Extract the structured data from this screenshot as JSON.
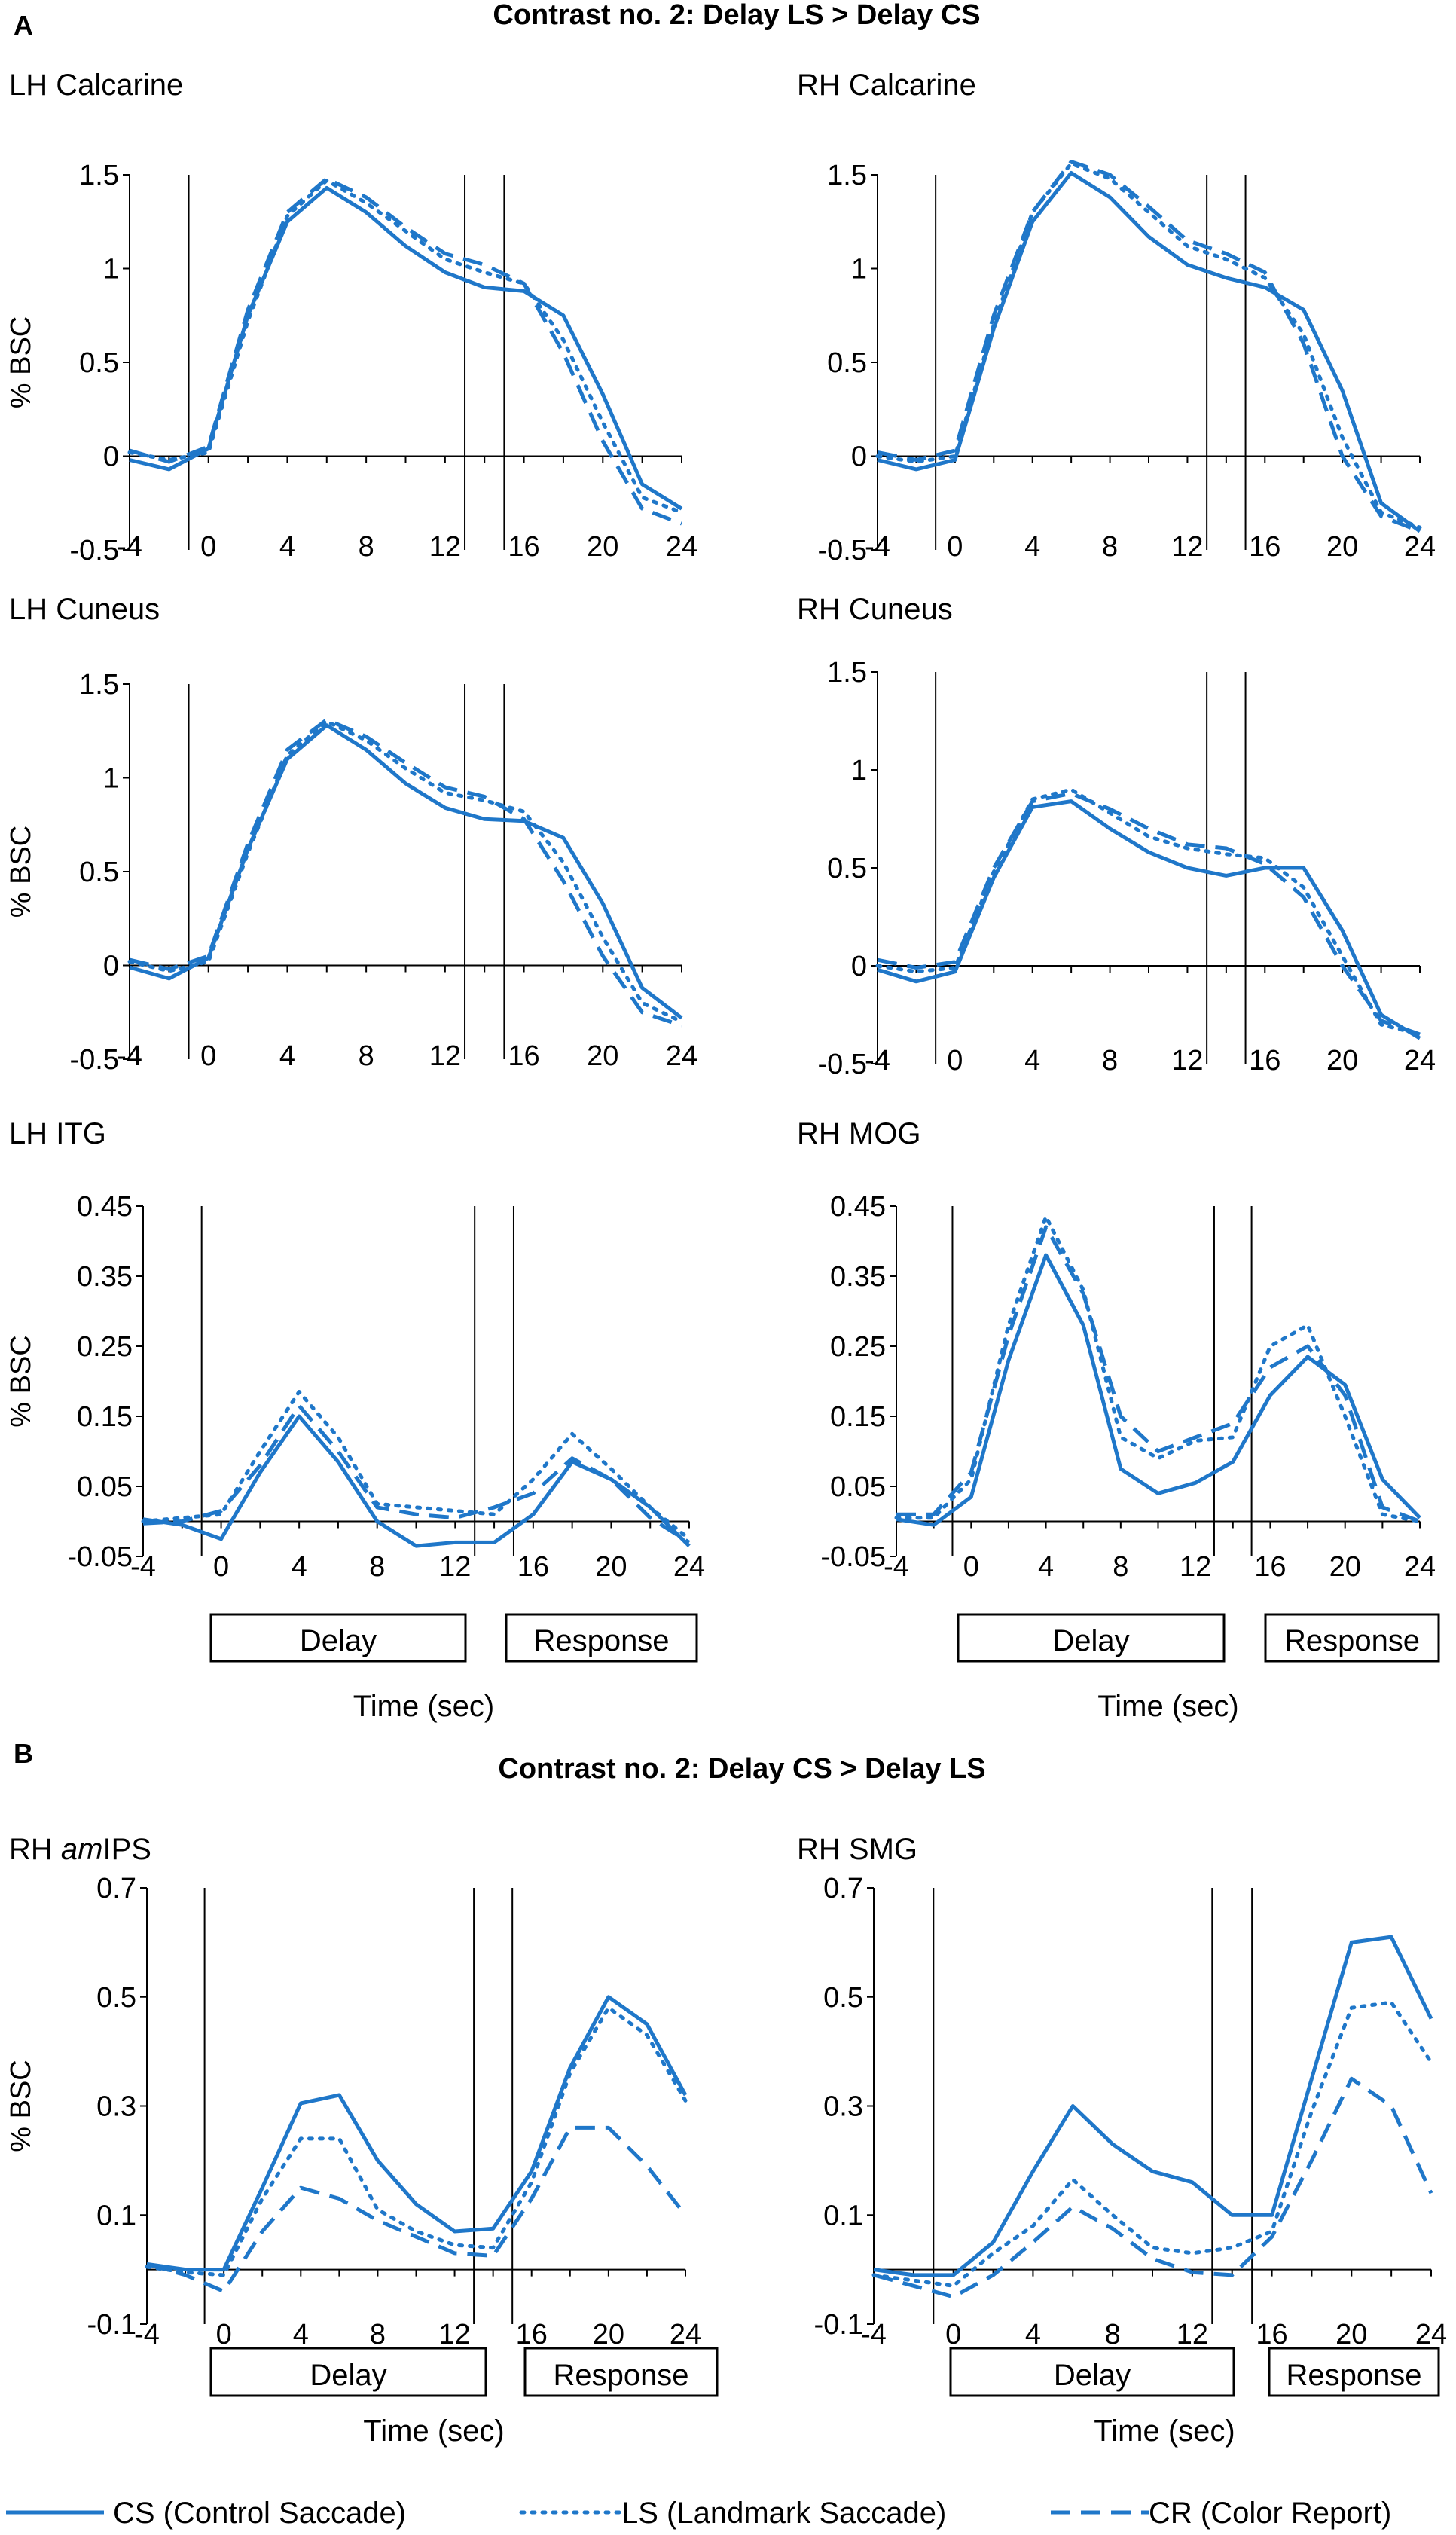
{
  "figure": {
    "panel_a_label": "A",
    "panel_a_title": "Contrast no. 2:  Delay LS > Delay CS",
    "panel_b_label": "B",
    "panel_b_title": "Contrast no. 2:  Delay CS > Delay LS",
    "delay_box_label": "Delay",
    "response_box_label": "Response",
    "x_axis_label": "Time (sec)",
    "line_color": "#1f77c9"
  },
  "legend": [
    {
      "key": "CS",
      "label": "CS (Control Saccade)",
      "style": "solid"
    },
    {
      "key": "LS",
      "label": "LS (Landmark Saccade)",
      "style": "dotted"
    },
    {
      "key": "CR",
      "label": "CR (Color Report)",
      "style": "dashed"
    }
  ],
  "chart_data": [
    {
      "type": "line",
      "title": "LH Calcarine",
      "title_parts": [
        {
          "t": "LH Calcarine",
          "i": false
        }
      ],
      "ylabel": "% BSC",
      "xlabel": "",
      "xlim": [
        -4,
        24
      ],
      "ylim": [
        -0.5,
        1.5
      ],
      "x_ticks": [
        -4,
        0,
        4,
        8,
        12,
        16,
        20,
        24
      ],
      "y_ticks": [
        -0.5,
        0,
        0.5,
        1,
        1.5
      ],
      "y_tick_labels": [
        "-0.5",
        "0",
        "0.5",
        "1",
        "1.5"
      ],
      "vlines": [
        -1,
        13,
        15
      ],
      "x": [
        -4,
        -2,
        0,
        2,
        4,
        6,
        8,
        10,
        12,
        14,
        16,
        18,
        20,
        22,
        24
      ],
      "series": [
        {
          "name": "CS",
          "values": [
            -0.02,
            -0.07,
            0.04,
            0.75,
            1.25,
            1.43,
            1.3,
            1.12,
            0.98,
            0.9,
            0.88,
            0.75,
            0.33,
            -0.15,
            -0.28
          ]
        },
        {
          "name": "LS",
          "values": [
            0.02,
            -0.02,
            0.02,
            0.72,
            1.28,
            1.47,
            1.35,
            1.2,
            1.05,
            0.98,
            0.92,
            0.62,
            0.18,
            -0.22,
            -0.3
          ]
        },
        {
          "name": "CR",
          "values": [
            0.03,
            -0.03,
            0.05,
            0.78,
            1.3,
            1.48,
            1.38,
            1.22,
            1.08,
            1.02,
            0.92,
            0.55,
            0.08,
            -0.28,
            -0.36
          ]
        }
      ]
    },
    {
      "type": "line",
      "title": "RH Calcarine",
      "title_parts": [
        {
          "t": "RH Calcarine",
          "i": false
        }
      ],
      "ylabel": "",
      "xlabel": "",
      "xlim": [
        -4,
        24
      ],
      "ylim": [
        -0.5,
        1.5
      ],
      "x_ticks": [
        -4,
        0,
        4,
        8,
        12,
        16,
        20,
        24
      ],
      "y_ticks": [
        -0.5,
        0,
        0.5,
        1,
        1.5
      ],
      "y_tick_labels": [
        "-0.5",
        "0",
        "0.5",
        "1",
        "1.5"
      ],
      "vlines": [
        -1,
        13,
        15
      ],
      "x": [
        -4,
        -2,
        0,
        2,
        4,
        6,
        8,
        10,
        12,
        14,
        16,
        18,
        20,
        22,
        24
      ],
      "series": [
        {
          "name": "CS",
          "values": [
            -0.02,
            -0.07,
            -0.02,
            0.68,
            1.25,
            1.51,
            1.38,
            1.17,
            1.02,
            0.95,
            0.9,
            0.78,
            0.35,
            -0.25,
            -0.4
          ]
        },
        {
          "name": "LS",
          "values": [
            0.0,
            -0.03,
            0.0,
            0.7,
            1.3,
            1.56,
            1.48,
            1.3,
            1.12,
            1.05,
            0.95,
            0.65,
            0.1,
            -0.3,
            -0.38
          ]
        },
        {
          "name": "CR",
          "values": [
            0.02,
            -0.02,
            0.03,
            0.75,
            1.3,
            1.57,
            1.5,
            1.33,
            1.15,
            1.08,
            0.98,
            0.6,
            0.0,
            -0.32,
            -0.4
          ]
        }
      ]
    },
    {
      "type": "line",
      "title": "LH Cuneus",
      "title_parts": [
        {
          "t": "LH Cuneus",
          "i": false
        }
      ],
      "ylabel": "% BSC",
      "xlabel": "",
      "xlim": [
        -4,
        24
      ],
      "ylim": [
        -0.5,
        1.5
      ],
      "x_ticks": [
        -4,
        0,
        4,
        8,
        12,
        16,
        20,
        24
      ],
      "y_ticks": [
        -0.5,
        0,
        0.5,
        1,
        1.5
      ],
      "y_tick_labels": [
        "-0.5",
        "0",
        "0.5",
        "1",
        "1.5"
      ],
      "vlines": [
        -1,
        13,
        15
      ],
      "x": [
        -4,
        -2,
        0,
        2,
        4,
        6,
        8,
        10,
        12,
        14,
        16,
        18,
        20,
        22,
        24
      ],
      "series": [
        {
          "name": "CS",
          "values": [
            -0.01,
            -0.07,
            0.04,
            0.62,
            1.1,
            1.28,
            1.15,
            0.97,
            0.84,
            0.78,
            0.77,
            0.68,
            0.33,
            -0.12,
            -0.28
          ]
        },
        {
          "name": "LS",
          "values": [
            0.02,
            -0.03,
            0.02,
            0.6,
            1.12,
            1.3,
            1.2,
            1.05,
            0.92,
            0.88,
            0.82,
            0.55,
            0.15,
            -0.2,
            -0.3
          ]
        },
        {
          "name": "CR",
          "values": [
            0.03,
            -0.02,
            0.05,
            0.65,
            1.15,
            1.31,
            1.22,
            1.08,
            0.95,
            0.9,
            0.78,
            0.45,
            0.05,
            -0.25,
            -0.32
          ]
        }
      ]
    },
    {
      "type": "line",
      "title": "RH Cuneus",
      "title_parts": [
        {
          "t": "RH Cuneus",
          "i": false
        }
      ],
      "ylabel": "",
      "xlabel": "",
      "xlim": [
        -4,
        24
      ],
      "ylim": [
        -0.5,
        1.5
      ],
      "x_ticks": [
        -4,
        0,
        4,
        8,
        12,
        16,
        20,
        24
      ],
      "y_ticks": [
        -0.5,
        0,
        0.5,
        1,
        1.5
      ],
      "y_tick_labels": [
        "-0.5",
        "0",
        "0.5",
        "1",
        "1.5"
      ],
      "vlines": [
        -1,
        13,
        15
      ],
      "x": [
        -4,
        -2,
        0,
        2,
        4,
        6,
        8,
        10,
        12,
        14,
        16,
        18,
        20,
        22,
        24
      ],
      "series": [
        {
          "name": "CS",
          "values": [
            -0.02,
            -0.08,
            -0.03,
            0.45,
            0.81,
            0.84,
            0.7,
            0.58,
            0.5,
            0.46,
            0.5,
            0.5,
            0.18,
            -0.25,
            -0.37
          ]
        },
        {
          "name": "LS",
          "values": [
            0.0,
            -0.03,
            -0.01,
            0.48,
            0.85,
            0.9,
            0.78,
            0.66,
            0.6,
            0.57,
            0.55,
            0.4,
            0.05,
            -0.3,
            -0.35
          ]
        },
        {
          "name": "CR",
          "values": [
            0.03,
            -0.01,
            0.02,
            0.5,
            0.84,
            0.88,
            0.8,
            0.7,
            0.62,
            0.6,
            0.52,
            0.35,
            0.0,
            -0.28,
            -0.35
          ]
        }
      ]
    },
    {
      "type": "line",
      "title": "LH ITG",
      "title_parts": [
        {
          "t": "LH ITG",
          "i": false
        }
      ],
      "ylabel": "% BSC",
      "xlabel": "",
      "xlim": [
        -4,
        24
      ],
      "ylim": [
        -0.05,
        0.45
      ],
      "x_ticks": [
        -4,
        0,
        4,
        8,
        12,
        16,
        20,
        24
      ],
      "y_ticks": [
        -0.05,
        0.05,
        0.15,
        0.25,
        0.35,
        0.45
      ],
      "y_tick_labels": [
        "-0.05",
        "0.05",
        "0.15",
        "0.25",
        "0.35",
        "0.45"
      ],
      "vlines": [
        -1,
        13,
        15
      ],
      "x": [
        -4,
        -2,
        0,
        2,
        4,
        6,
        8,
        10,
        12,
        14,
        16,
        18,
        20,
        22,
        24
      ],
      "series": [
        {
          "name": "CS",
          "values": [
            0.003,
            -0.005,
            -0.025,
            0.07,
            0.15,
            0.085,
            0.0,
            -0.035,
            -0.03,
            -0.03,
            0.01,
            0.085,
            0.06,
            0.02,
            -0.035
          ]
        },
        {
          "name": "LS",
          "values": [
            0.0,
            0.005,
            0.01,
            0.1,
            0.185,
            0.12,
            0.025,
            0.02,
            0.015,
            0.01,
            0.06,
            0.125,
            0.075,
            0.02,
            -0.025
          ]
        },
        {
          "name": "CR",
          "values": [
            -0.003,
            0.0,
            0.015,
            0.08,
            0.165,
            0.1,
            0.02,
            0.01,
            0.005,
            0.02,
            0.04,
            0.09,
            0.06,
            0.005,
            -0.03
          ]
        }
      ]
    },
    {
      "type": "line",
      "title": "RH MOG",
      "title_parts": [
        {
          "t": "RH MOG",
          "i": false
        }
      ],
      "ylabel": "",
      "xlabel": "",
      "xlim": [
        -4,
        24
      ],
      "ylim": [
        -0.05,
        0.45
      ],
      "x_ticks": [
        -4,
        0,
        4,
        8,
        12,
        16,
        20,
        24
      ],
      "y_ticks": [
        -0.05,
        0.05,
        0.15,
        0.25,
        0.35,
        0.45
      ],
      "y_tick_labels": [
        "-0.05",
        "0.05",
        "0.15",
        "0.25",
        "0.35",
        "0.45"
      ],
      "vlines": [
        -1,
        13,
        15
      ],
      "x": [
        -4,
        -2,
        0,
        2,
        4,
        6,
        8,
        10,
        12,
        14,
        16,
        18,
        20,
        22,
        24
      ],
      "series": [
        {
          "name": "CS",
          "values": [
            0.003,
            -0.005,
            0.035,
            0.23,
            0.38,
            0.28,
            0.075,
            0.04,
            0.055,
            0.085,
            0.18,
            0.235,
            0.195,
            0.06,
            0.005
          ]
        },
        {
          "name": "LS",
          "values": [
            0.005,
            0.005,
            0.06,
            0.28,
            0.435,
            0.33,
            0.12,
            0.09,
            0.115,
            0.12,
            0.25,
            0.28,
            0.15,
            0.01,
            0.0
          ]
        },
        {
          "name": "CR",
          "values": [
            0.01,
            0.01,
            0.07,
            0.265,
            0.42,
            0.325,
            0.15,
            0.1,
            0.12,
            0.14,
            0.22,
            0.25,
            0.18,
            0.02,
            0.0
          ]
        }
      ]
    },
    {
      "type": "line",
      "title": "RH amIPS",
      "title_parts": [
        {
          "t": "RH ",
          "i": false
        },
        {
          "t": "am",
          "i": true
        },
        {
          "t": "IPS",
          "i": false
        }
      ],
      "ylabel": "% BSC",
      "xlabel": "",
      "xlim": [
        -4,
        24
      ],
      "ylim": [
        -0.1,
        0.7
      ],
      "x_ticks": [
        -4,
        0,
        4,
        8,
        12,
        16,
        20,
        24
      ],
      "y_ticks": [
        -0.1,
        0.1,
        0.3,
        0.5,
        0.7
      ],
      "y_tick_labels": [
        "-0.1",
        "0.1",
        "0.3",
        "0.5",
        "0.7"
      ],
      "vlines": [
        -1,
        13,
        15
      ],
      "x": [
        -4,
        -2,
        0,
        2,
        4,
        6,
        8,
        10,
        12,
        14,
        16,
        18,
        20,
        22,
        24
      ],
      "series": [
        {
          "name": "CS",
          "values": [
            0.01,
            0.0,
            0.0,
            0.15,
            0.305,
            0.32,
            0.2,
            0.12,
            0.07,
            0.075,
            0.18,
            0.37,
            0.5,
            0.45,
            0.32
          ]
        },
        {
          "name": "LS",
          "values": [
            0.005,
            -0.005,
            -0.01,
            0.13,
            0.24,
            0.24,
            0.11,
            0.07,
            0.045,
            0.04,
            0.16,
            0.36,
            0.48,
            0.43,
            0.31
          ]
        },
        {
          "name": "CR",
          "values": [
            0.01,
            -0.01,
            -0.04,
            0.07,
            0.15,
            0.13,
            0.09,
            0.06,
            0.03,
            0.025,
            0.13,
            0.26,
            0.26,
            0.19,
            0.1
          ]
        }
      ]
    },
    {
      "type": "line",
      "title": "RH SMG",
      "title_parts": [
        {
          "t": "RH SMG",
          "i": false
        }
      ],
      "ylabel": "",
      "xlabel": "",
      "xlim": [
        -4,
        24
      ],
      "ylim": [
        -0.1,
        0.7
      ],
      "x_ticks": [
        -4,
        0,
        4,
        8,
        12,
        16,
        20,
        24
      ],
      "y_ticks": [
        -0.1,
        0.1,
        0.3,
        0.5,
        0.7
      ],
      "y_tick_labels": [
        "-0.1",
        "0.1",
        "0.3",
        "0.5",
        "0.7"
      ],
      "vlines": [
        -1,
        13,
        15
      ],
      "x": [
        -4,
        -2,
        0,
        2,
        4,
        6,
        8,
        10,
        12,
        14,
        16,
        18,
        20,
        22,
        24
      ],
      "series": [
        {
          "name": "CS",
          "values": [
            0.0,
            -0.01,
            -0.01,
            0.05,
            0.18,
            0.3,
            0.23,
            0.18,
            0.16,
            0.1,
            0.1,
            0.35,
            0.6,
            0.61,
            0.46
          ]
        },
        {
          "name": "LS",
          "values": [
            -0.01,
            -0.02,
            -0.03,
            0.03,
            0.08,
            0.165,
            0.1,
            0.04,
            0.03,
            0.04,
            0.07,
            0.29,
            0.48,
            0.49,
            0.38
          ]
        },
        {
          "name": "CR",
          "values": [
            -0.01,
            -0.03,
            -0.05,
            -0.01,
            0.05,
            0.115,
            0.075,
            0.02,
            -0.005,
            -0.01,
            0.06,
            0.2,
            0.35,
            0.3,
            0.14
          ]
        }
      ]
    }
  ]
}
